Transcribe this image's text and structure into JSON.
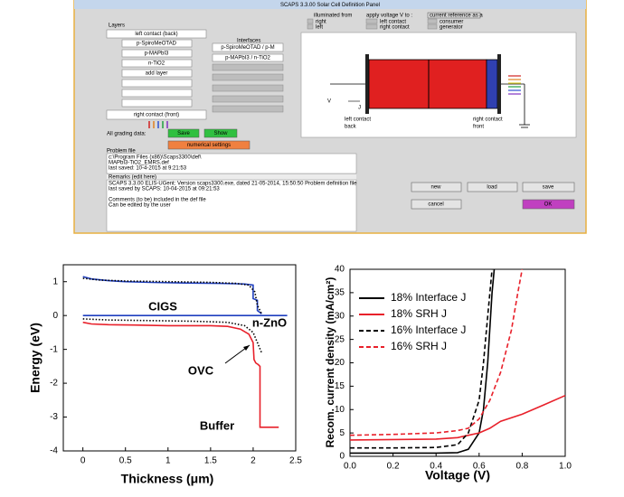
{
  "panel": {
    "title": "SCAPS 3.3.00 Solar Cell Definition Panel",
    "layers": {
      "heading": "Layers",
      "back": "left contact (back)",
      "items": [
        "p-SpiroMeOTAD",
        "p-MAPbI3",
        "n-TiO2"
      ],
      "add": "add layer",
      "front": "right contact (front)"
    },
    "interfaces": {
      "heading": "Interfaces",
      "items": [
        "p-SpiroMeOTAD / p-M",
        "p-MAPbI3 / n-TiO2"
      ]
    },
    "illumination": {
      "heading": "illuminated from",
      "options": [
        "right",
        "left"
      ]
    },
    "voltage": {
      "heading": "apply voltage V to :",
      "options": [
        "left contact",
        "right contact"
      ]
    },
    "current": {
      "heading": "current reference as a",
      "options": [
        "consumer",
        "generator"
      ]
    },
    "device": {
      "v": "V",
      "j": "J",
      "left": [
        "left contact",
        "back"
      ],
      "right": [
        "right contact",
        "front"
      ]
    },
    "grading": {
      "label": "All grading data:",
      "save": "Save",
      "show": "Show",
      "numerical": "numerical settings"
    },
    "problem_file": {
      "heading": "Problem file",
      "lines": [
        "c:\\Program Files (x86)\\Scaps3300\\def\\",
        "MAPbI3-TiO2_EMRS.def",
        "last saved: 10-4-2015 at 9:21:53"
      ]
    },
    "remarks": {
      "heading": "Remarks (edit here)",
      "lines": [
        "SCAPS 3.3.00 ELIS-UGent: Version scaps3300.exe, dated 21-05-2014, 15:50:50 Problem definition file",
        "last saved by SCAPS: 10-04-2015 at 09:21:53",
        "Comments (to be) included in the def file",
        "Can be edited by the user"
      ]
    },
    "buttons": {
      "new": "new",
      "load": "load",
      "save": "save",
      "cancel": "cancel",
      "ok": "OK"
    }
  },
  "chart_data": [
    {
      "type": "line",
      "x_label": "Thickness (μm)",
      "y_label": "Energy (eV)",
      "xlim": [
        -0.23,
        2.5
      ],
      "ylim": [
        -4,
        1.5
      ],
      "xticks": [
        0,
        0.5,
        1,
        1.5,
        2,
        2.5
      ],
      "yticks": [
        -4,
        -3,
        -2,
        -1,
        0,
        1
      ],
      "annotations": [
        "CIGS",
        "n-ZnO",
        "OVC",
        "Buffer"
      ],
      "series": [
        {
          "color": "#1f3fbf",
          "linestyle": "solid",
          "x": [
            0,
            0.1,
            0.3,
            0.5,
            0.8,
            1.2,
            1.6,
            1.8,
            1.9,
            2.0,
            2.0,
            2.05,
            2.05,
            2.1
          ],
          "values": [
            1.15,
            1.08,
            1.03,
            1.0,
            0.98,
            0.96,
            0.95,
            0.94,
            0.93,
            0.9,
            0.5,
            0.45,
            0.15,
            0.05
          ]
        },
        {
          "color": "#000000",
          "linestyle": "dotted",
          "x": [
            0,
            0.2,
            0.5,
            1.0,
            1.5,
            1.8,
            1.95,
            2.02,
            2.05,
            2.1
          ],
          "values": [
            1.1,
            1.05,
            1.02,
            1.0,
            0.98,
            0.95,
            0.9,
            0.7,
            0.3,
            0.05
          ]
        },
        {
          "color": "#1f3fbf",
          "linestyle": "solid",
          "x": [
            0,
            2.4
          ],
          "values": [
            0,
            0
          ]
        },
        {
          "color": "#e8202a",
          "linestyle": "solid",
          "x": [
            0,
            0.1,
            0.3,
            0.6,
            1.0,
            1.5,
            1.7,
            1.85,
            1.95,
            2.0,
            2.01,
            2.03,
            2.06,
            2.08,
            2.08,
            2.3
          ],
          "values": [
            -0.2,
            -0.25,
            -0.27,
            -0.28,
            -0.3,
            -0.3,
            -0.32,
            -0.4,
            -0.55,
            -0.8,
            -1.3,
            -1.4,
            -1.45,
            -1.5,
            -3.3,
            -3.3
          ]
        },
        {
          "color": "#000000",
          "linestyle": "dotted",
          "x": [
            0,
            0.3,
            0.8,
            1.3,
            1.7,
            1.9,
            2.0,
            2.05,
            2.1
          ],
          "values": [
            -0.1,
            -0.13,
            -0.15,
            -0.17,
            -0.2,
            -0.3,
            -0.5,
            -0.8,
            -1.1
          ]
        }
      ]
    },
    {
      "type": "line",
      "x_label": "Voltage (V)",
      "y_label": "Recom. current density (mA/cm²)",
      "xlim": [
        0,
        1
      ],
      "ylim": [
        0,
        40
      ],
      "xticks": [
        {
          "value": 0,
          "label": "0.0"
        },
        0.2,
        0.4,
        0.6,
        0.8,
        {
          "value": 1,
          "label": "1.0"
        }
      ],
      "yticks": [
        0,
        5,
        10,
        15,
        20,
        25,
        30,
        35,
        40
      ],
      "legend": "upper left",
      "series": [
        {
          "name": "18% Interface J",
          "color": "#000000",
          "linestyle": "solid",
          "x": [
            0,
            0.2,
            0.4,
            0.5,
            0.55,
            0.6,
            0.62,
            0.64,
            0.66,
            0.67
          ],
          "values": [
            0.7,
            0.7,
            0.7,
            0.8,
            1.5,
            5,
            10,
            20,
            35,
            40
          ]
        },
        {
          "name": "18% SRH J",
          "color": "#e8202a",
          "linestyle": "solid",
          "x": [
            0,
            0.2,
            0.4,
            0.5,
            0.55,
            0.6,
            0.65,
            0.7,
            0.8,
            0.9,
            1.0
          ],
          "values": [
            3.5,
            3.6,
            3.7,
            4,
            4.5,
            5,
            6,
            7.5,
            9,
            11,
            13
          ]
        },
        {
          "name": "16% Interface J",
          "color": "#000000",
          "linestyle": "dashed",
          "x": [
            0,
            0.2,
            0.4,
            0.5,
            0.55,
            0.6,
            0.62,
            0.64,
            0.66
          ],
          "values": [
            1.8,
            1.8,
            1.9,
            2.5,
            5,
            12,
            20,
            30,
            40
          ]
        },
        {
          "name": "16% SRH J",
          "color": "#e8202a",
          "linestyle": "dashed",
          "x": [
            0,
            0.2,
            0.4,
            0.5,
            0.55,
            0.6,
            0.65,
            0.7,
            0.75,
            0.78,
            0.8
          ],
          "values": [
            4.5,
            4.7,
            5,
            5.5,
            6,
            8,
            12,
            18,
            27,
            35,
            40
          ]
        }
      ]
    }
  ]
}
